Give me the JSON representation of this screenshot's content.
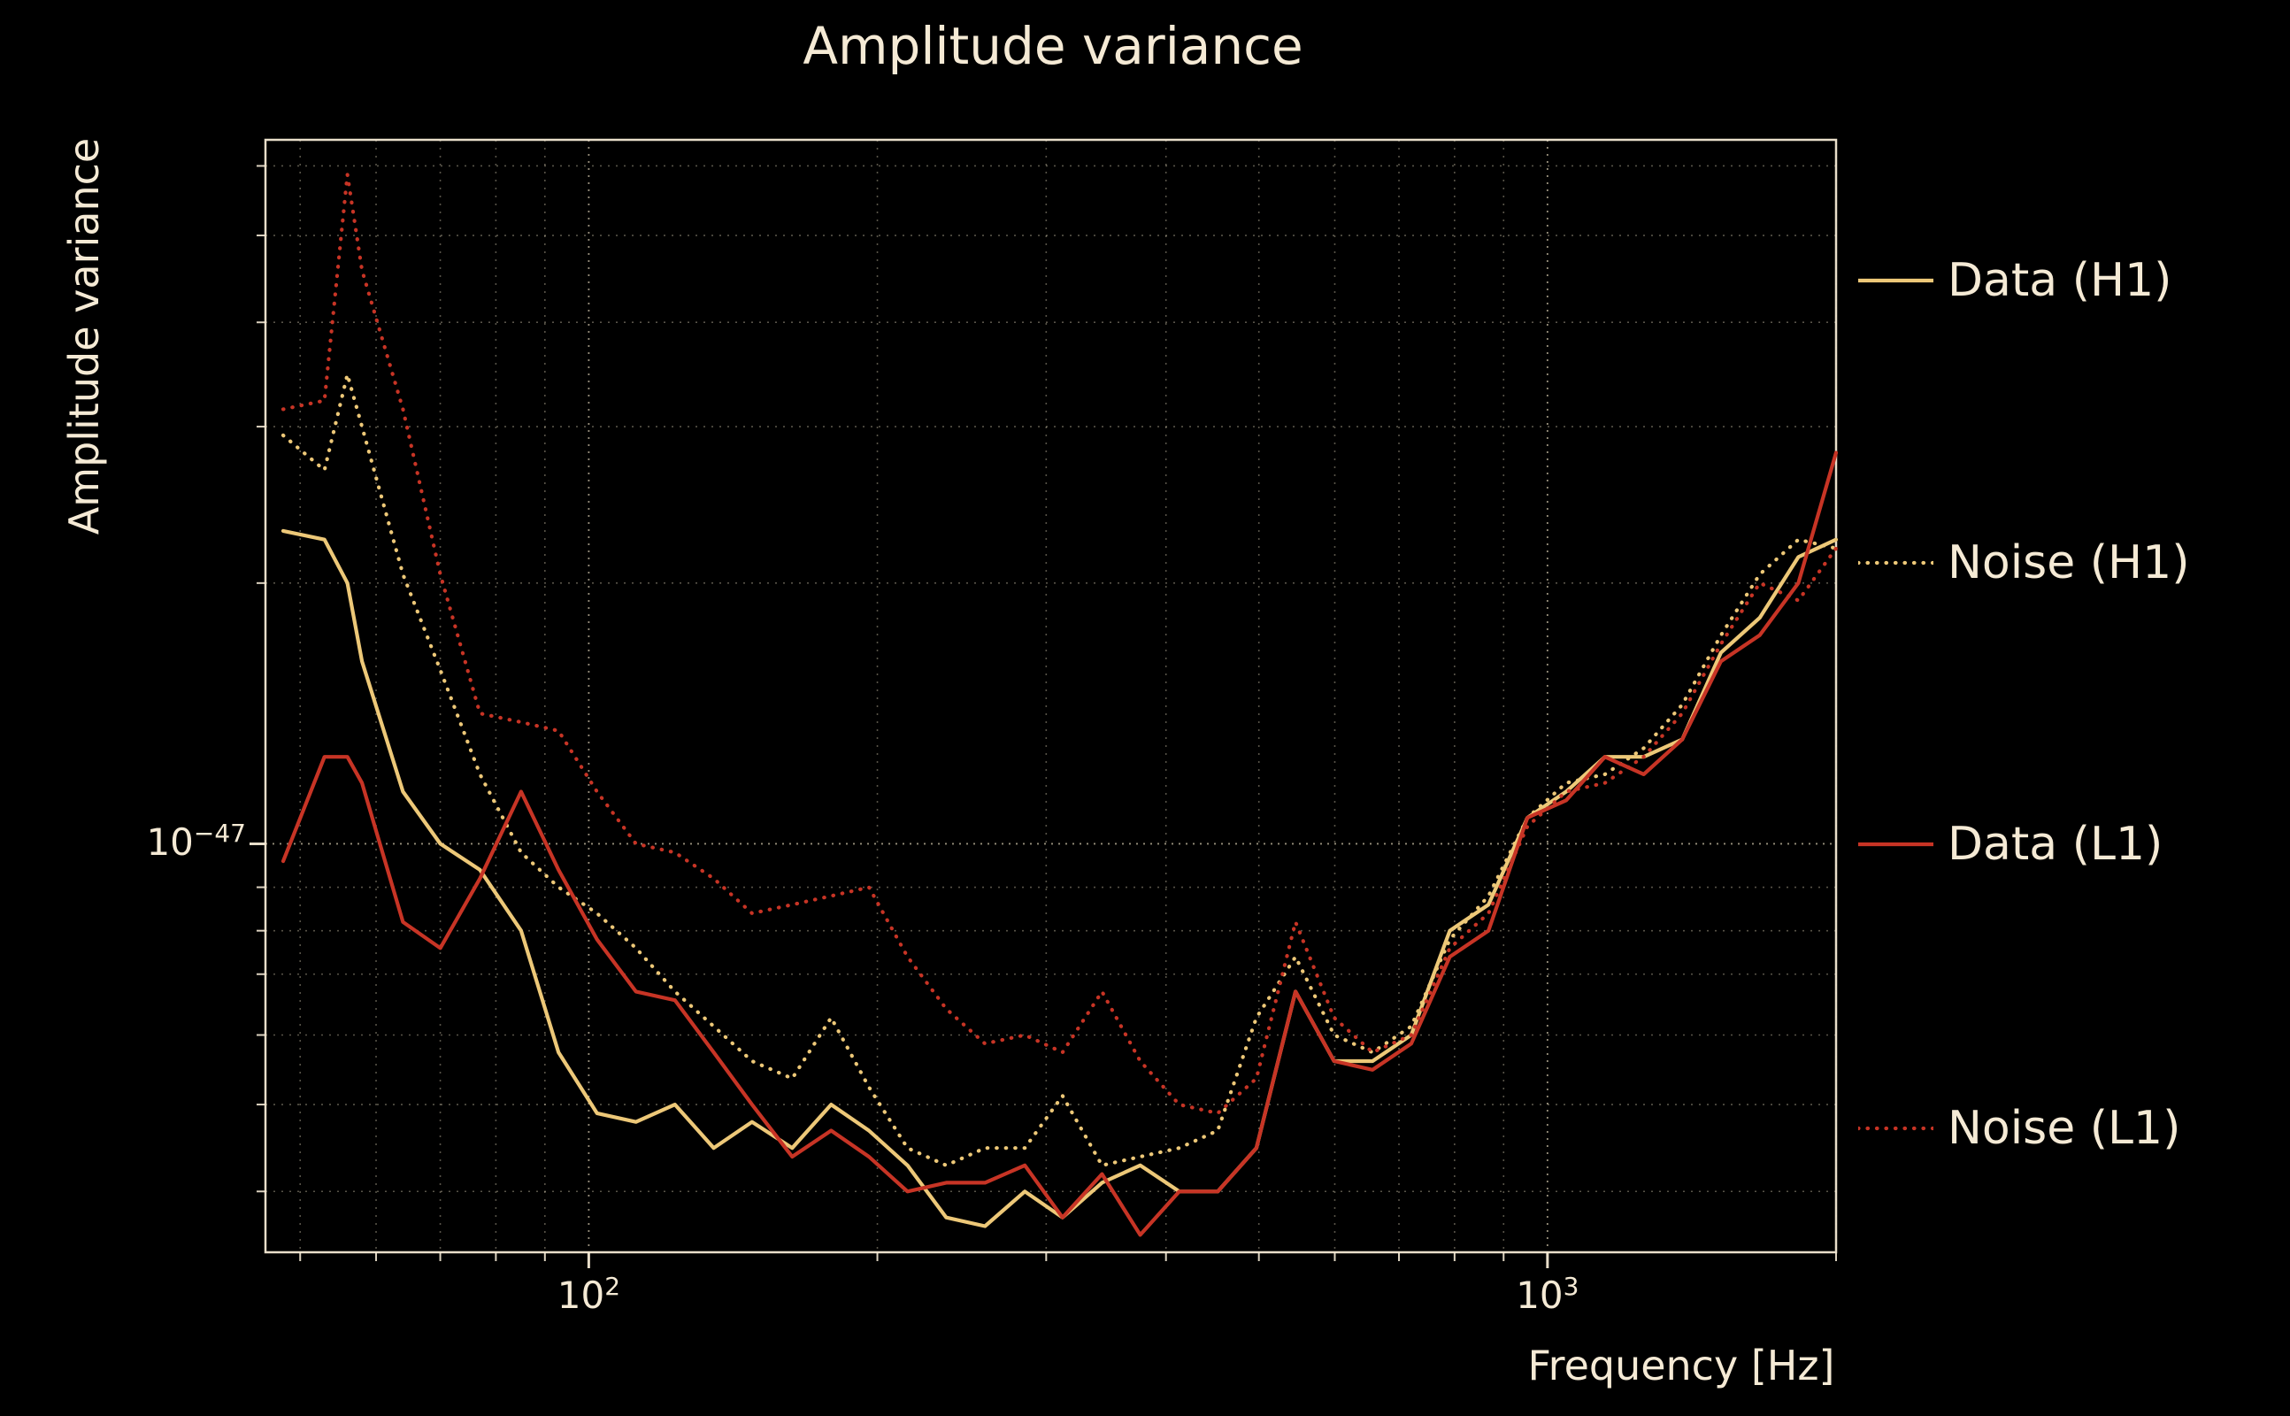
{
  "title": "Amplitude variance",
  "colors": {
    "background": "#000000",
    "text": "#f5ead5",
    "grid": "#e8dcbf",
    "spine": "#f5ead5",
    "h1": "#edc878",
    "l1": "#c73425"
  },
  "xaxis": {
    "label": "Frequency [Hz]",
    "scale": "log",
    "min": 46,
    "max": 2000,
    "major_ticks": [
      {
        "value": 100,
        "base": "10",
        "sup": "2"
      },
      {
        "value": 1000,
        "base": "10",
        "sup": "3"
      }
    ],
    "minor_ticks": [
      50,
      60,
      70,
      80,
      90,
      200,
      300,
      400,
      500,
      600,
      700,
      800,
      900,
      2000
    ]
  },
  "yaxis": {
    "label": "Amplitude variance",
    "scale": "log",
    "log10_min": -47.47,
    "log10_max": -46.19,
    "major_ticks": [
      {
        "log10": -47,
        "base": "10",
        "sup": "−47"
      }
    ],
    "minor_ticks_log10": [
      -47.4,
      -47.3,
      -47.22,
      -47.15,
      -47.1,
      -47.05,
      -46.7,
      -46.52,
      -46.4,
      -46.3,
      -46.22
    ]
  },
  "legend": {
    "items": [
      {
        "label": "Data (H1)",
        "color_key": "h1",
        "dash": false
      },
      {
        "label": "Noise (H1)",
        "color_key": "h1",
        "dash": true
      },
      {
        "label": "Data (L1)",
        "color_key": "l1",
        "dash": false
      },
      {
        "label": "Noise (L1)",
        "color_key": "l1",
        "dash": true
      }
    ],
    "item_y_centers": [
      317,
      636,
      954,
      1275
    ]
  },
  "chart_data": {
    "type": "line",
    "title": "Amplitude variance",
    "xlabel": "Frequency [Hz]",
    "ylabel": "Amplitude variance",
    "x_scale": "log",
    "y_scale": "log",
    "xlim_hz": [
      46,
      2000
    ],
    "ylim_log10": [
      -47.47,
      -46.19
    ],
    "grid": true,
    "legend_position": "right-outside",
    "x_frequencies_hz": [
      48,
      53,
      56,
      58,
      64,
      70,
      77,
      85,
      93,
      102,
      112,
      123,
      135,
      148,
      163,
      179,
      196,
      215,
      236,
      259,
      285,
      312,
      343,
      376,
      413,
      453,
      497,
      546,
      599,
      657,
      721,
      791,
      868,
      953,
      1046,
      1148,
      1260,
      1382,
      1517,
      1665,
      1827,
      2000
    ],
    "series": [
      {
        "name": "Data (H1)",
        "style": "solid",
        "color": "#edc878",
        "log10_values": [
          -46.64,
          -46.65,
          -46.7,
          -46.79,
          -46.94,
          -47.0,
          -47.03,
          -47.1,
          -47.24,
          -47.31,
          -47.32,
          -47.3,
          -47.35,
          -47.32,
          -47.35,
          -47.3,
          -47.33,
          -47.37,
          -47.43,
          -47.44,
          -47.4,
          -47.43,
          -47.39,
          -47.37,
          -47.4,
          -47.4,
          -47.35,
          -47.17,
          -47.25,
          -47.25,
          -47.22,
          -47.1,
          -47.07,
          -46.97,
          -46.94,
          -46.9,
          -46.9,
          -46.88,
          -46.78,
          -46.74,
          -46.67,
          -46.65
        ]
      },
      {
        "name": "Noise (H1)",
        "style": "dotted",
        "color": "#edc878",
        "log10_values": [
          -46.53,
          -46.57,
          -46.46,
          -46.52,
          -46.69,
          -46.8,
          -46.92,
          -47.01,
          -47.05,
          -47.08,
          -47.12,
          -47.17,
          -47.21,
          -47.25,
          -47.27,
          -47.2,
          -47.28,
          -47.35,
          -47.37,
          -47.35,
          -47.35,
          -47.29,
          -47.37,
          -47.36,
          -47.35,
          -47.33,
          -47.2,
          -47.13,
          -47.22,
          -47.24,
          -47.21,
          -47.11,
          -47.06,
          -46.97,
          -46.93,
          -46.92,
          -46.89,
          -46.84,
          -46.76,
          -46.69,
          -46.65,
          -46.66
        ]
      },
      {
        "name": "Data (L1)",
        "style": "solid",
        "color": "#c73425",
        "log10_values": [
          -47.02,
          -46.9,
          -46.9,
          -46.93,
          -47.09,
          -47.12,
          -47.04,
          -46.94,
          -47.03,
          -47.11,
          -47.17,
          -47.18,
          -47.24,
          -47.3,
          -47.36,
          -47.33,
          -47.36,
          -47.4,
          -47.39,
          -47.39,
          -47.37,
          -47.43,
          -47.38,
          -47.45,
          -47.4,
          -47.4,
          -47.35,
          -47.17,
          -47.25,
          -47.26,
          -47.23,
          -47.13,
          -47.1,
          -46.97,
          -46.95,
          -46.9,
          -46.92,
          -46.88,
          -46.79,
          -46.76,
          -46.7,
          -46.55
        ]
      },
      {
        "name": "Noise (L1)",
        "style": "dotted",
        "color": "#c73425",
        "log10_values": [
          -46.5,
          -46.49,
          -46.23,
          -46.34,
          -46.5,
          -46.69,
          -46.85,
          -46.86,
          -46.87,
          -46.94,
          -47.0,
          -47.01,
          -47.04,
          -47.08,
          -47.07,
          -47.06,
          -47.05,
          -47.13,
          -47.19,
          -47.23,
          -47.22,
          -47.24,
          -47.17,
          -47.25,
          -47.3,
          -47.31,
          -47.27,
          -47.09,
          -47.2,
          -47.24,
          -47.22,
          -47.12,
          -47.08,
          -46.98,
          -46.94,
          -46.93,
          -46.9,
          -46.85,
          -46.77,
          -46.7,
          -46.72,
          -46.66
        ]
      }
    ]
  }
}
